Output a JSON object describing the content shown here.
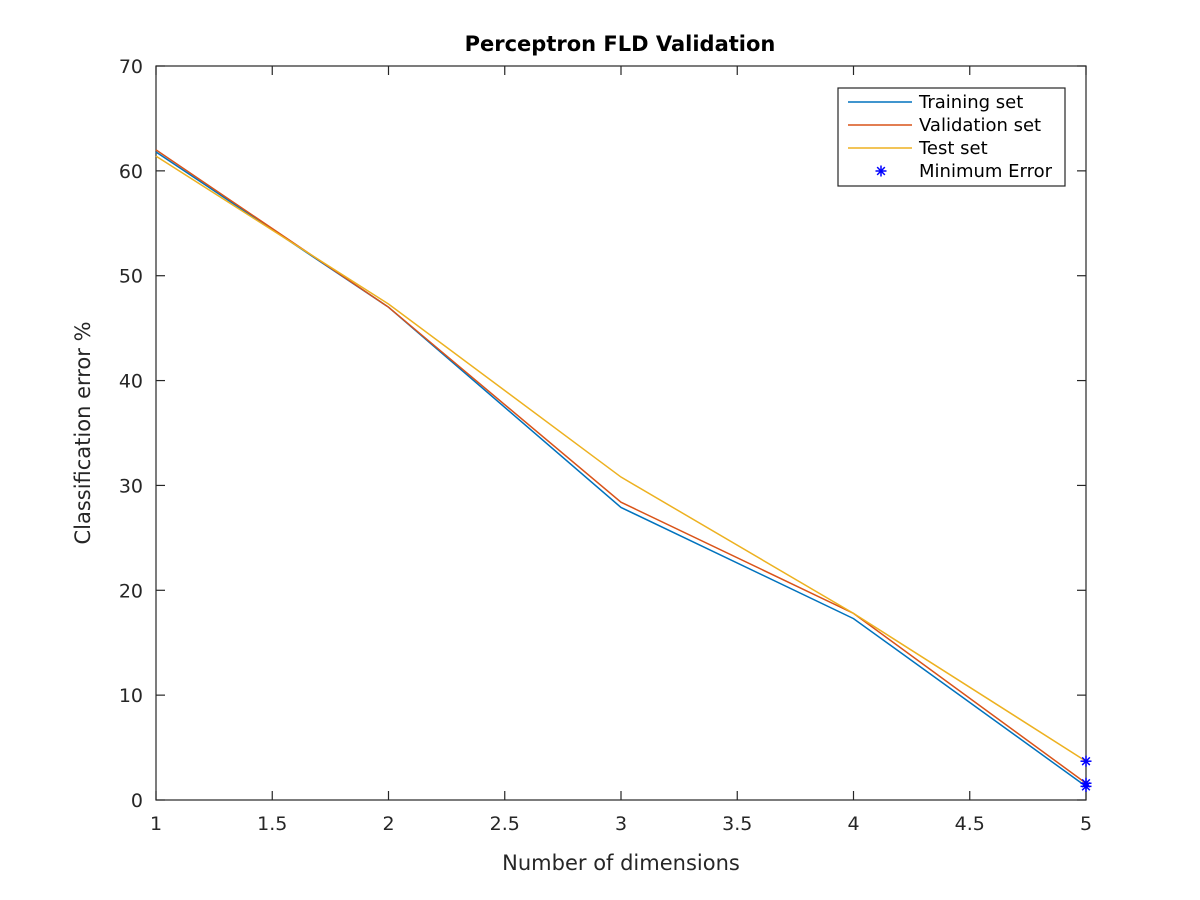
{
  "chart_data": {
    "type": "line",
    "title": "Perceptron FLD Validation",
    "xlabel": "Number of dimensions",
    "ylabel": "Classification error %",
    "xlim": [
      1,
      5
    ],
    "ylim": [
      0,
      70
    ],
    "xticks": [
      1,
      1.5,
      2,
      2.5,
      3,
      3.5,
      4,
      4.5,
      5
    ],
    "xtick_labels": [
      "1",
      "1.5",
      "2",
      "2.5",
      "3",
      "3.5",
      "4",
      "4.5",
      "5"
    ],
    "yticks": [
      0,
      10,
      20,
      30,
      40,
      50,
      60,
      70
    ],
    "ytick_labels": [
      "0",
      "10",
      "20",
      "30",
      "40",
      "50",
      "60",
      "70"
    ],
    "grid": false,
    "legend_position": "top-right",
    "x": [
      1,
      2,
      3,
      4,
      5
    ],
    "series": [
      {
        "name": "Training set",
        "values": [
          61.8,
          47.0,
          27.9,
          17.3,
          1.3
        ],
        "color": "#0072BD"
      },
      {
        "name": "Validation set",
        "values": [
          62.0,
          47.0,
          28.4,
          17.8,
          1.6
        ],
        "color": "#D95319"
      },
      {
        "name": "Test set",
        "values": [
          61.4,
          47.3,
          30.8,
          17.8,
          3.7
        ],
        "color": "#EDB120"
      }
    ],
    "markers": {
      "name": "Minimum Error",
      "symbol": "*",
      "color": "#0000FF",
      "points": [
        {
          "x": 5,
          "y": 1.3
        },
        {
          "x": 5,
          "y": 1.6
        },
        {
          "x": 5,
          "y": 3.7
        }
      ]
    }
  }
}
